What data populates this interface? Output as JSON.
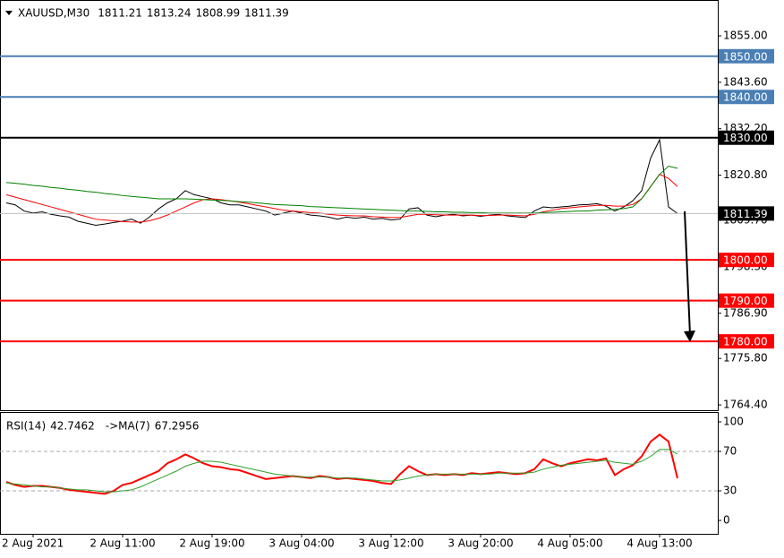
{
  "chart_data": [
    {
      "type": "line",
      "title": "XAUUSD,M30",
      "ohlc": {
        "open": 1811.21,
        "high": 1813.24,
        "low": 1808.99
      },
      "categories": [
        null,
        null,
        null,
        "2 Aug 2021",
        null,
        null,
        null,
        null,
        null,
        null,
        null,
        null,
        null,
        "2 Aug 11:00",
        null,
        null,
        null,
        null,
        null,
        null,
        null,
        null,
        null,
        "2 Aug 19:00",
        null,
        null,
        null,
        null,
        null,
        null,
        null,
        null,
        null,
        "3 Aug 04:00",
        null,
        null,
        null,
        null,
        null,
        null,
        null,
        null,
        null,
        "3 Aug 12:00",
        null,
        null,
        null,
        null,
        null,
        null,
        null,
        null,
        null,
        "3 Aug 20:00",
        null,
        null,
        null,
        null,
        null,
        null,
        null,
        null,
        null,
        "4 Aug 05:00",
        null,
        null,
        null,
        null,
        null,
        null,
        null,
        null,
        null,
        "4 Aug 13:00",
        null,
        null
      ],
      "series": [
        {
          "color": "#000000",
          "values": [
            1814,
            1813.5,
            1812,
            1811.5,
            1811.8,
            1811.2,
            1810.8,
            1810.5,
            1809.5,
            1809,
            1808.5,
            1808.8,
            1809.2,
            1809.5,
            1810,
            1809,
            1810.5,
            1812.5,
            1814,
            1815,
            1817,
            1816,
            1815.5,
            1815,
            1814,
            1813.5,
            1813.5,
            1813,
            1812.5,
            1812,
            1811,
            1811.5,
            1812,
            1811.5,
            1811,
            1810.8,
            1810.5,
            1810,
            1810.5,
            1810.2,
            1810.5,
            1810,
            1810.2,
            1809.8,
            1810,
            1812.5,
            1812.8,
            1811,
            1810.6,
            1811,
            1811.2,
            1810.8,
            1811,
            1810.7,
            1811,
            1811.2,
            1810.8,
            1810.6,
            1810.4,
            1812,
            1813,
            1812.8,
            1813,
            1813.2,
            1813.5,
            1813.6,
            1813.8,
            1813.2,
            1812,
            1813,
            1814.5,
            1817,
            1825,
            1829.5,
            1813,
            1811.39
          ]
        },
        {
          "color": "#ff0000",
          "values": [
            1816,
            1815.4,
            1814.8,
            1814.2,
            1813.6,
            1813,
            1812.4,
            1811.8,
            1811.2,
            1810.6,
            1810,
            1809.8,
            1809.6,
            1809.4,
            1809.3,
            1809.3,
            1809.6,
            1810.2,
            1811,
            1812,
            1813,
            1814,
            1814.8,
            1815,
            1814.8,
            1814.5,
            1814.2,
            1813.8,
            1813.4,
            1813,
            1812.6,
            1812.2,
            1812,
            1811.8,
            1811.6,
            1811.5,
            1811.2,
            1811,
            1810.9,
            1810.8,
            1810.8,
            1810.6,
            1810.5,
            1810.4,
            1810.4,
            1810.8,
            1811.2,
            1811.2,
            1811.1,
            1811,
            1811,
            1811,
            1811,
            1810.9,
            1810.9,
            1811,
            1811,
            1810.9,
            1810.8,
            1811.2,
            1811.8,
            1812.2,
            1812.6,
            1812.8,
            1813,
            1813.2,
            1813.4,
            1813.4,
            1813.2,
            1813.2,
            1813.6,
            1815,
            1818,
            1821,
            1820,
            1818
          ]
        },
        {
          "color": "#008000",
          "values": [
            1819,
            1818.8,
            1818.6,
            1818.3,
            1818.1,
            1817.8,
            1817.6,
            1817.3,
            1817.1,
            1816.8,
            1816.6,
            1816.3,
            1816.1,
            1815.8,
            1815.6,
            1815.4,
            1815.2,
            1815,
            1815,
            1815,
            1815,
            1814.9,
            1814.8,
            1814.7,
            1814.6,
            1814.5,
            1814.3,
            1814.2,
            1814,
            1813.8,
            1813.6,
            1813.5,
            1813.4,
            1813.3,
            1813.1,
            1813,
            1812.9,
            1812.8,
            1812.7,
            1812.6,
            1812.5,
            1812.4,
            1812.3,
            1812.2,
            1812.1,
            1812,
            1812,
            1811.9,
            1811.8,
            1811.8,
            1811.7,
            1811.7,
            1811.6,
            1811.6,
            1811.5,
            1811.5,
            1811.5,
            1811.5,
            1811.5,
            1811.5,
            1811.6,
            1811.7,
            1811.8,
            1811.9,
            1812,
            1812,
            1812.2,
            1812.3,
            1812.4,
            1812.6,
            1813,
            1815,
            1818,
            1821,
            1823,
            1822.5
          ]
        }
      ],
      "ylim": [
        1763.1,
        1863.8
      ],
      "yticks": [
        {
          "value": 1855,
          "label": "1855.00"
        },
        {
          "value": 1843.6,
          "label": "1843.60"
        },
        {
          "value": 1832.2,
          "label": "1832.20"
        },
        {
          "value": 1820.8,
          "label": "1820.80"
        },
        {
          "value": 1809.7,
          "label": "1809.70"
        },
        {
          "value": 1798.3,
          "label": "1798.30"
        },
        {
          "value": 1786.9,
          "label": "1786.90"
        },
        {
          "value": 1775.8,
          "label": "1775.80"
        },
        {
          "value": 1764.4,
          "label": "1764.40"
        }
      ],
      "levels": [
        {
          "value": 1850,
          "label": "1850.00",
          "color": "#4a7fb5"
        },
        {
          "value": 1840,
          "label": "1840.00",
          "color": "#4a7fb5"
        },
        {
          "value": 1830,
          "label": "1830.00",
          "color": "#000000"
        },
        {
          "value": 1800,
          "label": "1800.00",
          "color": "#ff0000"
        },
        {
          "value": 1790,
          "label": "1790.00",
          "color": "#ff0000"
        },
        {
          "value": 1780,
          "label": "1780.00",
          "color": "#ff0000"
        }
      ]
    },
    {
      "type": "line",
      "series": [
        {
          "name": "RSI(14)",
          "color": "#ff0000",
          "values": [
            39,
            36,
            34,
            35,
            35,
            34,
            33,
            31,
            30,
            29,
            28,
            27,
            30,
            36,
            38,
            42,
            46,
            50,
            58,
            62,
            67,
            63,
            58,
            55,
            54,
            52,
            51,
            48,
            45,
            42,
            43,
            44,
            45,
            44,
            43,
            45,
            44,
            42,
            43,
            42,
            41,
            40,
            38,
            37,
            47,
            55,
            50,
            46,
            47,
            46,
            47,
            46,
            48,
            47,
            48,
            49,
            48,
            47,
            48,
            52,
            62,
            58,
            55,
            58,
            60,
            62,
            61,
            63,
            46,
            52,
            56,
            65,
            80,
            87,
            80,
            42.7462
          ]
        },
        {
          "name": "->MA(7)",
          "color": "#2ca02c",
          "values": [
            38,
            37,
            36,
            35,
            34,
            34,
            33,
            32,
            31,
            31,
            30,
            29,
            29,
            30,
            31,
            34,
            38,
            42,
            46,
            50,
            55,
            58,
            60,
            60,
            59,
            57,
            55,
            53,
            51,
            49,
            47,
            46,
            45,
            44,
            44,
            44,
            44,
            43,
            43,
            43,
            42,
            41,
            40,
            40,
            41,
            43,
            45,
            46,
            47,
            47,
            47,
            47,
            47,
            47,
            47,
            48,
            48,
            48,
            48,
            49,
            52,
            54,
            56,
            57,
            58,
            59,
            60,
            61,
            59,
            58,
            57,
            60,
            65,
            72,
            72,
            67.2956
          ]
        }
      ],
      "ylim": [
        -13.6,
        110
      ],
      "yticks": [
        100,
        70,
        30,
        0
      ],
      "levels": [
        {
          "value": 70
        },
        {
          "value": 30
        }
      ]
    }
  ]
}
